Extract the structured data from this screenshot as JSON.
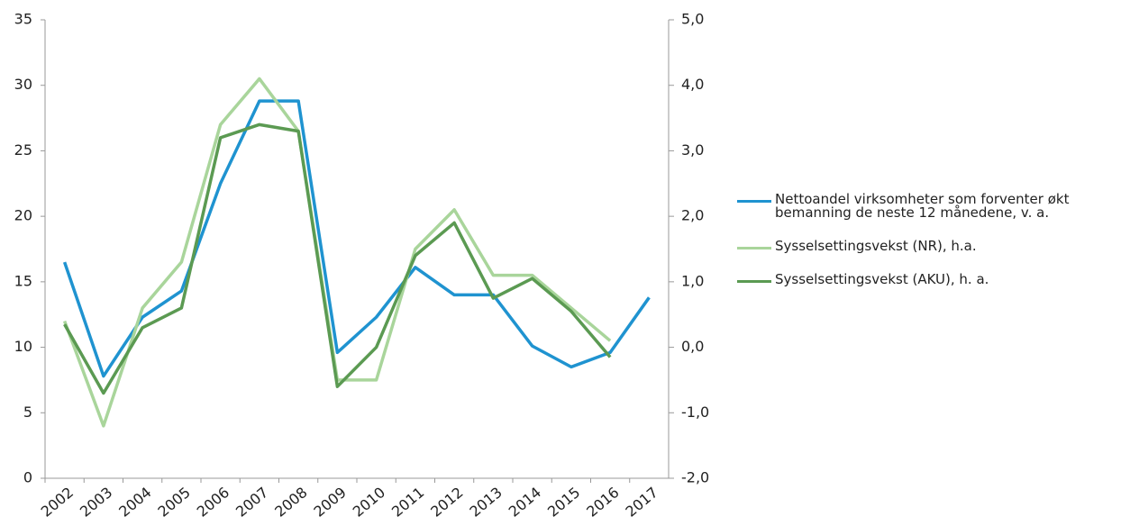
{
  "chart_data": {
    "type": "line",
    "categories": [
      "2002",
      "2003",
      "2004",
      "2005",
      "2006",
      "2007",
      "2008",
      "2009",
      "2010",
      "2011",
      "2012",
      "2013",
      "2014",
      "2015",
      "2016",
      "2017"
    ],
    "series": [
      {
        "name": "Nettoandel virksomheter som forventer økt bemanning de neste 12 månedene, v. a.",
        "color": "#1f93d0",
        "axis": "y",
        "values": [
          16.5,
          7.8,
          12.3,
          14.3,
          22.5,
          28.8,
          28.8,
          9.6,
          12.3,
          16.1,
          14.0,
          14.0,
          10.1,
          8.5,
          9.6,
          13.8
        ]
      },
      {
        "name": "Sysselsettingsvekst (NR), h.a.",
        "color": "#a9d59b",
        "axis": "y2",
        "values": [
          0.4,
          -1.2,
          0.6,
          1.3,
          3.4,
          4.1,
          3.3,
          -0.5,
          -0.5,
          1.5,
          2.1,
          1.1,
          1.1,
          0.6,
          0.1,
          null
        ]
      },
      {
        "name": "Sysselsettingsvekst (AKU), h. a.",
        "color": "#5b9a52",
        "axis": "y2",
        "values": [
          0.35,
          -0.7,
          0.3,
          0.6,
          3.2,
          3.4,
          3.3,
          -0.6,
          0.0,
          1.4,
          1.9,
          0.75,
          1.05,
          0.55,
          -0.15,
          null
        ]
      }
    ],
    "ylim": [
      0,
      35
    ],
    "yticks": [
      0,
      5,
      10,
      15,
      20,
      25,
      30,
      35
    ],
    "y2lim": [
      -2,
      5
    ],
    "y2ticks": [
      {
        "value": -2,
        "label": "-2,0"
      },
      {
        "value": -1,
        "label": "-1,0"
      },
      {
        "value": 0,
        "label": "0,0"
      },
      {
        "value": 1,
        "label": "1,0"
      },
      {
        "value": 2,
        "label": "2,0"
      },
      {
        "value": 3,
        "label": "3,0"
      },
      {
        "value": 4,
        "label": "4,0"
      },
      {
        "value": 5,
        "label": "5,0"
      }
    ],
    "grid": false,
    "legend": "right"
  }
}
